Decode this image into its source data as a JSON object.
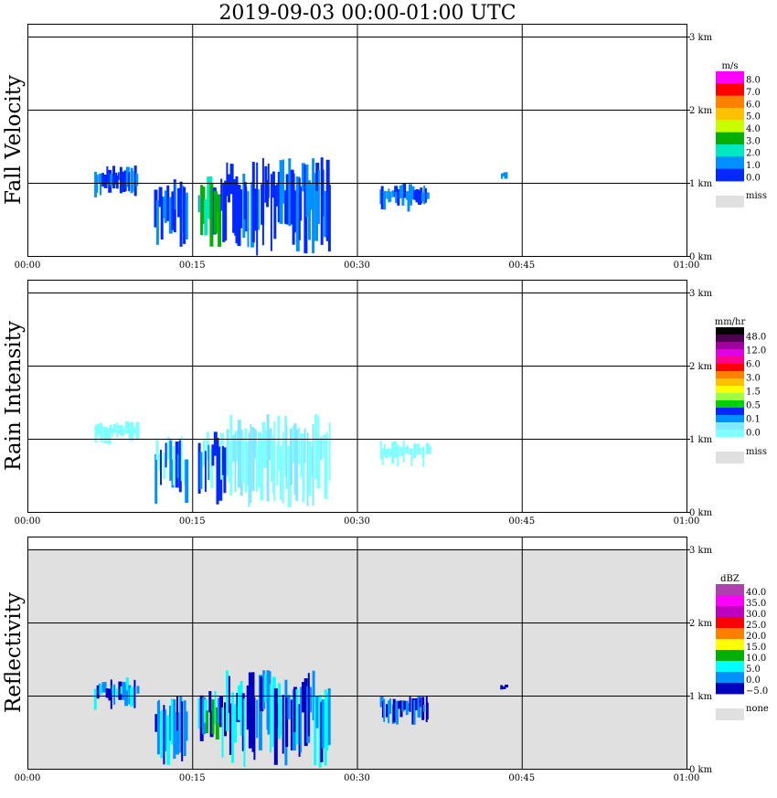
{
  "title": "2019-09-03   00:00-01:00 UTC",
  "x_ticks": [
    "00:00",
    "00:15",
    "00:30",
    "00:45",
    "01:00"
  ],
  "y_ticks": [
    "0 km",
    "1 km",
    "2 km",
    "3 km"
  ],
  "colors": {
    "frame": "#000000",
    "missing_background": "#e0e0e0"
  },
  "chart_data": [
    {
      "type": "heatmap",
      "title": "Fall Velocity",
      "x_range": [
        "00:00",
        "01:00"
      ],
      "y_range_km": [
        0,
        3.0
      ],
      "grid": true,
      "background": "#ffffff",
      "legend": {
        "unit": "m/s",
        "placement": "right",
        "labels": [
          "8.0",
          "7.0",
          "6.0",
          "5.0",
          "4.0",
          "3.0",
          "2.0",
          "1.0",
          "0.0"
        ],
        "colors": [
          "#ff00ff",
          "#ff0000",
          "#ff8000",
          "#ffc000",
          "#c8ff00",
          "#00b000",
          "#00e8c0",
          "#0090ff",
          "#0028ff"
        ],
        "missing_label": "miss",
        "missing_color": "#e0e0e0"
      },
      "echo_clusters": [
        {
          "t_start_min": 6.0,
          "t_end_min": 10.0,
          "h_bottom_km": 0.8,
          "h_top_km": 1.25,
          "colors": [
            "#0028ff",
            "#0090ff"
          ]
        },
        {
          "t_start_min": 11.5,
          "t_end_min": 14.5,
          "h_bottom_km": 0.05,
          "h_top_km": 1.05,
          "colors": [
            "#0028ff",
            "#0090ff"
          ]
        },
        {
          "t_start_min": 15.5,
          "t_end_min": 18.0,
          "h_bottom_km": 0.1,
          "h_top_km": 1.1,
          "colors": [
            "#0090ff",
            "#00e8c0",
            "#00b000",
            "#0028ff"
          ]
        },
        {
          "t_start_min": 18.0,
          "t_end_min": 27.5,
          "h_bottom_km": 0.0,
          "h_top_km": 1.35,
          "colors": [
            "#0028ff",
            "#0090ff"
          ]
        },
        {
          "t_start_min": 32.0,
          "t_end_min": 36.5,
          "h_bottom_km": 0.6,
          "h_top_km": 1.0,
          "colors": [
            "#0028ff",
            "#0090ff"
          ]
        },
        {
          "t_start_min": 43.0,
          "t_end_min": 43.5,
          "h_bottom_km": 1.05,
          "h_top_km": 1.15,
          "colors": [
            "#0090ff"
          ]
        }
      ]
    },
    {
      "type": "heatmap",
      "title": "Rain Intensity",
      "x_range": [
        "00:00",
        "01:00"
      ],
      "y_range_km": [
        0,
        3.0
      ],
      "grid": true,
      "background": "#ffffff",
      "legend": {
        "unit": "mm/hr",
        "placement": "right",
        "labels": [
          "48.0",
          "12.0",
          "6.0",
          "3.0",
          "1.5",
          "0.5",
          "0.1",
          "0.0"
        ],
        "colors": [
          "#000000",
          "#500050",
          "#a000a0",
          "#e000e0",
          "#ff0090",
          "#ff0000",
          "#ff8000",
          "#ffc000",
          "#ffff00",
          "#a0ff40",
          "#00d000",
          "#0028ff",
          "#0090ff",
          "#80e8ff",
          "#80ffff"
        ],
        "missing_label": "miss",
        "missing_color": "#e0e0e0"
      },
      "echo_clusters": [
        {
          "t_start_min": 6.0,
          "t_end_min": 10.0,
          "h_bottom_km": 0.9,
          "h_top_km": 1.25,
          "colors": [
            "#80ffff"
          ]
        },
        {
          "t_start_min": 11.5,
          "t_end_min": 14.5,
          "h_bottom_km": 0.05,
          "h_top_km": 1.05,
          "colors": [
            "#80ffff",
            "#0090ff",
            "#0028ff"
          ]
        },
        {
          "t_start_min": 15.5,
          "t_end_min": 18.0,
          "h_bottom_km": 0.1,
          "h_top_km": 1.1,
          "colors": [
            "#80ffff",
            "#0090ff",
            "#0028ff"
          ]
        },
        {
          "t_start_min": 18.0,
          "t_end_min": 27.5,
          "h_bottom_km": 0.0,
          "h_top_km": 1.35,
          "colors": [
            "#80ffff",
            "#80e8ff"
          ]
        },
        {
          "t_start_min": 32.0,
          "t_end_min": 36.5,
          "h_bottom_km": 0.6,
          "h_top_km": 1.0,
          "colors": [
            "#80ffff"
          ]
        }
      ]
    },
    {
      "type": "heatmap",
      "title": "Reflectivity",
      "x_range": [
        "00:00",
        "01:00"
      ],
      "y_range_km": [
        0,
        3.0
      ],
      "grid": true,
      "background": "#e0e0e0",
      "legend": {
        "unit": "dBZ",
        "placement": "right",
        "labels": [
          "40.0",
          "35.0",
          "30.0",
          "25.0",
          "20.0",
          "15.0",
          "10.0",
          "5.0",
          "0.0",
          "−5.0"
        ],
        "colors": [
          "#b040b0",
          "#ff00ff",
          "#c000c0",
          "#ff0000",
          "#ff8000",
          "#ffff00",
          "#00b000",
          "#00ffff",
          "#0090ff",
          "#0000c0"
        ],
        "missing_label": "none",
        "missing_color": "#e0e0e0"
      },
      "echo_clusters": [
        {
          "t_start_min": 6.0,
          "t_end_min": 10.0,
          "h_bottom_km": 0.8,
          "h_top_km": 1.25,
          "colors": [
            "#0000c0",
            "#0090ff",
            "#00ffff"
          ]
        },
        {
          "t_start_min": 11.5,
          "t_end_min": 14.5,
          "h_bottom_km": 0.05,
          "h_top_km": 1.05,
          "colors": [
            "#0000c0",
            "#0090ff",
            "#00ffff"
          ]
        },
        {
          "t_start_min": 15.5,
          "t_end_min": 18.0,
          "h_bottom_km": 0.1,
          "h_top_km": 1.1,
          "colors": [
            "#00ffff",
            "#00b000",
            "#0090ff",
            "#0000c0"
          ]
        },
        {
          "t_start_min": 18.0,
          "t_end_min": 27.5,
          "h_bottom_km": 0.0,
          "h_top_km": 1.35,
          "colors": [
            "#0000c0",
            "#0090ff",
            "#00ffff"
          ]
        },
        {
          "t_start_min": 32.0,
          "t_end_min": 36.5,
          "h_bottom_km": 0.6,
          "h_top_km": 1.0,
          "colors": [
            "#0000c0",
            "#0090ff"
          ]
        },
        {
          "t_start_min": 43.0,
          "t_end_min": 43.5,
          "h_bottom_km": 1.05,
          "h_top_km": 1.15,
          "colors": [
            "#0000c0"
          ]
        }
      ]
    }
  ]
}
